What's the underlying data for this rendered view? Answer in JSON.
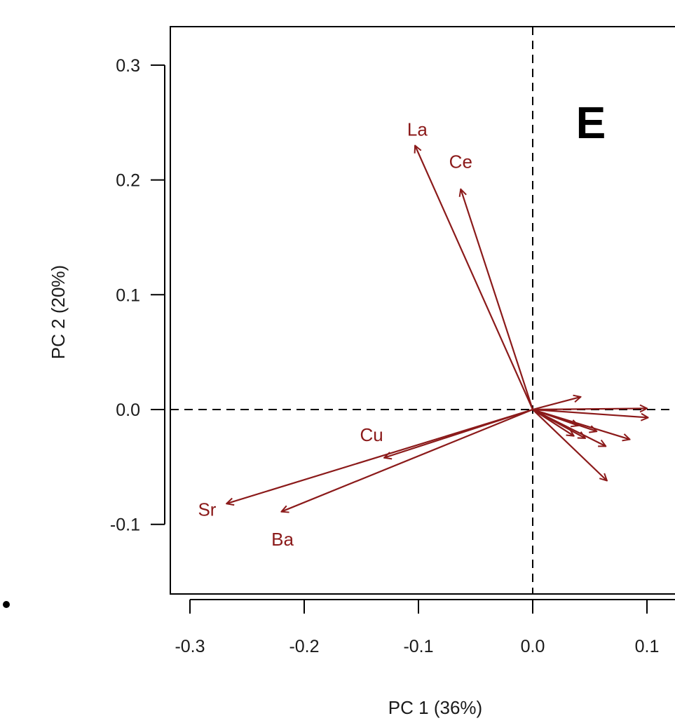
{
  "chart_data": {
    "type": "biplot",
    "panel_label": "E",
    "xlabel": "PC 1 (36%)",
    "ylabel": "PC 2 (20%)",
    "xlim": [
      -0.31,
      0.125
    ],
    "ylim": [
      -0.16,
      0.335
    ],
    "x_ticks": [
      -0.3,
      -0.2,
      -0.1,
      0.0,
      0.1
    ],
    "x_tick_labels": [
      "-0.3",
      "-0.2",
      "-0.1",
      "0.0",
      "0.1"
    ],
    "y_ticks": [
      -0.1,
      0.0,
      0.1,
      0.2,
      0.3
    ],
    "y_tick_labels": [
      "-0.1",
      "0.0",
      "0.1",
      "0.2",
      "0.3"
    ],
    "reference_lines": {
      "x": 0.0,
      "y": 0.0,
      "style": "dashed"
    },
    "arrow_color": "#8b1a1a",
    "vectors": [
      {
        "name": "La",
        "x": -0.103,
        "y": 0.23,
        "labeled": true
      },
      {
        "name": "Ce",
        "x": -0.063,
        "y": 0.192,
        "labeled": true
      },
      {
        "name": "Cu",
        "x": -0.13,
        "y": -0.042,
        "labeled": true
      },
      {
        "name": "Sr",
        "x": -0.268,
        "y": -0.082,
        "labeled": true
      },
      {
        "name": "Ba",
        "x": -0.22,
        "y": -0.089,
        "labeled": true
      },
      {
        "name": "",
        "x": 0.042,
        "y": 0.011,
        "labeled": false
      },
      {
        "name": "",
        "x": 0.1,
        "y": 0.001,
        "labeled": false
      },
      {
        "name": "",
        "x": 0.101,
        "y": -0.007,
        "labeled": false
      },
      {
        "name": "",
        "x": 0.085,
        "y": -0.026,
        "labeled": false
      },
      {
        "name": "",
        "x": 0.065,
        "y": -0.062,
        "labeled": false
      },
      {
        "name": "",
        "x": 0.064,
        "y": -0.032,
        "labeled": false
      },
      {
        "name": "",
        "x": 0.056,
        "y": -0.019,
        "labeled": false
      },
      {
        "name": "",
        "x": 0.046,
        "y": -0.025,
        "labeled": false
      },
      {
        "name": "",
        "x": 0.036,
        "y": -0.023,
        "labeled": false
      },
      {
        "name": "",
        "x": 0.04,
        "y": -0.014,
        "labeled": false
      }
    ],
    "labels": [
      {
        "text": "La",
        "x": -0.101,
        "y": 0.244
      },
      {
        "text": "Ce",
        "x": -0.063,
        "y": 0.216
      },
      {
        "text": "Cu",
        "x": -0.141,
        "y": -0.022
      },
      {
        "text": "Sr",
        "x": -0.285,
        "y": -0.087
      },
      {
        "text": "Ba",
        "x": -0.219,
        "y": -0.113
      }
    ]
  }
}
